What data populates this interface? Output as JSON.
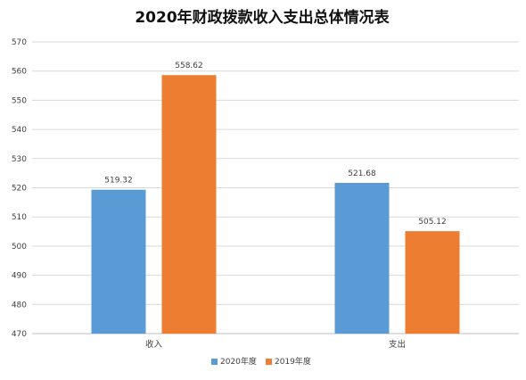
{
  "chart_data": {
    "type": "bar",
    "title": "2020年财政拨款收入支出总体情况表",
    "categories": [
      "收入",
      "支出"
    ],
    "series": [
      {
        "name": "2020年度",
        "color": "#5b9bd5",
        "values": [
          519.32,
          521.68
        ],
        "labels": [
          "519.32",
          "521.68"
        ]
      },
      {
        "name": "2019年度",
        "color": "#ed7d31",
        "values": [
          558.62,
          505.12
        ],
        "labels": [
          "558.62",
          "505.12"
        ]
      }
    ],
    "ylim": [
      470,
      570
    ],
    "yticks": [
      470,
      480,
      490,
      500,
      510,
      520,
      530,
      540,
      550,
      560,
      570
    ],
    "grid": true,
    "legend": "bottom"
  }
}
